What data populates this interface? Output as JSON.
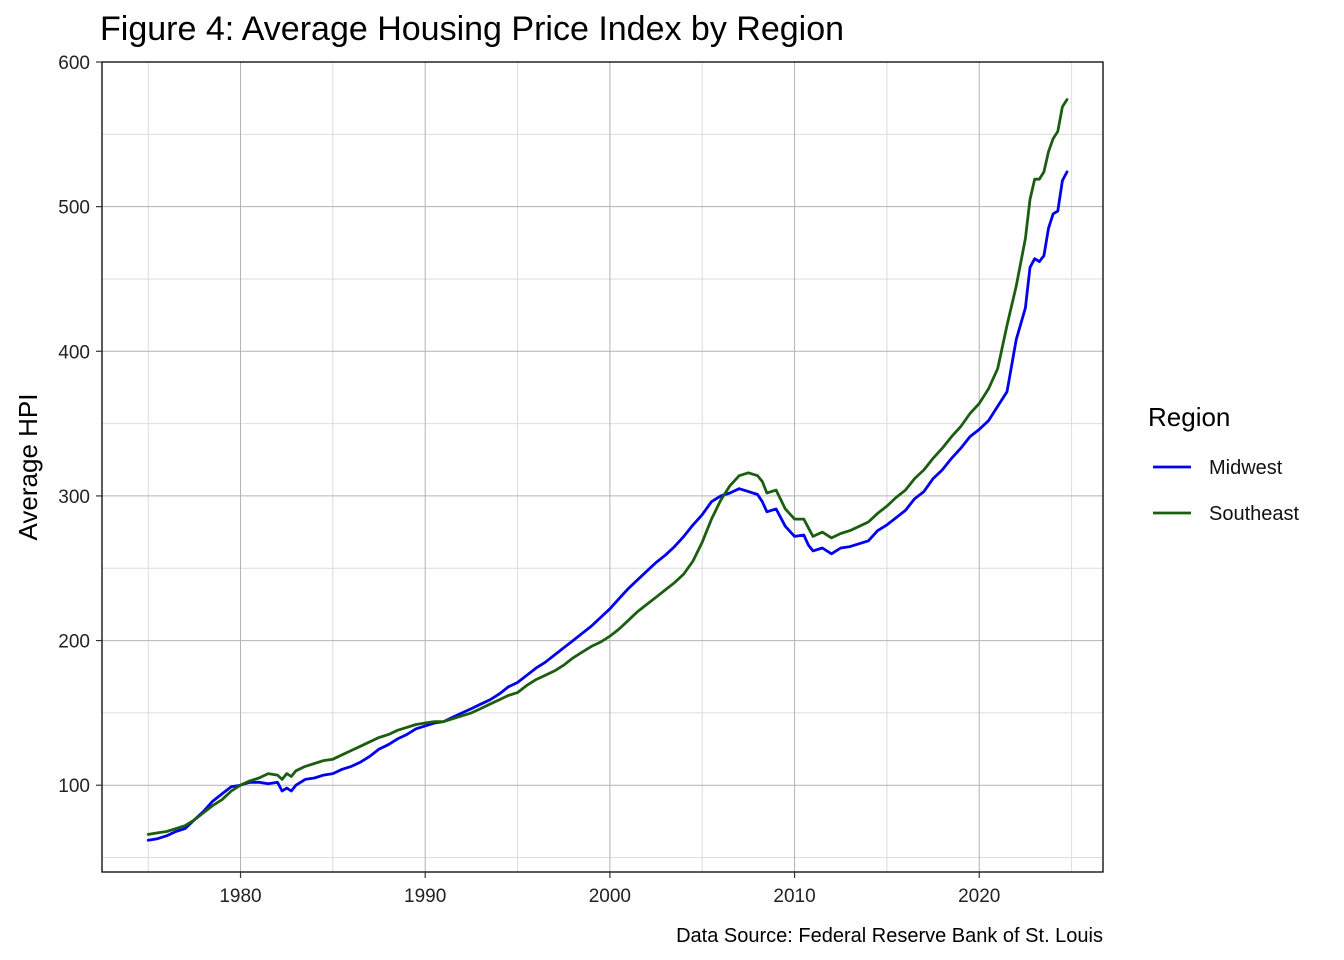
{
  "chart_data": {
    "type": "line",
    "title": "Figure 4: Average Housing Price Index by Region",
    "xlabel": "",
    "ylabel": "Average HPI",
    "caption": "Data Source: Federal Reserve Bank of St. Louis",
    "xlim": [
      1972.5,
      2026.7
    ],
    "ylim": [
      40,
      600
    ],
    "x_ticks": [
      1980,
      1990,
      2000,
      2010,
      2020
    ],
    "y_ticks": [
      100,
      200,
      300,
      400,
      500,
      600
    ],
    "grid": true,
    "legend": {
      "title": "Region",
      "position": "right"
    },
    "series": [
      {
        "name": "Midwest",
        "color": "#0000ee",
        "points": [
          [
            1975.0,
            62
          ],
          [
            1975.5,
            63
          ],
          [
            1976.0,
            65
          ],
          [
            1976.5,
            68
          ],
          [
            1977.0,
            70
          ],
          [
            1977.5,
            76
          ],
          [
            1978.0,
            82
          ],
          [
            1978.5,
            89
          ],
          [
            1979.0,
            94
          ],
          [
            1979.5,
            99
          ],
          [
            1980.0,
            100
          ],
          [
            1980.5,
            102
          ],
          [
            1981.0,
            102
          ],
          [
            1981.5,
            101
          ],
          [
            1982.0,
            102
          ],
          [
            1982.25,
            96
          ],
          [
            1982.5,
            98
          ],
          [
            1982.75,
            96
          ],
          [
            1983.0,
            100
          ],
          [
            1983.5,
            104
          ],
          [
            1984.0,
            105
          ],
          [
            1984.5,
            107
          ],
          [
            1985.0,
            108
          ],
          [
            1985.5,
            111
          ],
          [
            1986.0,
            113
          ],
          [
            1986.5,
            116
          ],
          [
            1987.0,
            120
          ],
          [
            1987.5,
            125
          ],
          [
            1988.0,
            128
          ],
          [
            1988.5,
            132
          ],
          [
            1989.0,
            135
          ],
          [
            1989.5,
            139
          ],
          [
            1990.0,
            141
          ],
          [
            1990.5,
            143
          ],
          [
            1991.0,
            144
          ],
          [
            1991.5,
            147
          ],
          [
            1992.0,
            150
          ],
          [
            1992.5,
            153
          ],
          [
            1993.0,
            156
          ],
          [
            1993.5,
            159
          ],
          [
            1994.0,
            163
          ],
          [
            1994.5,
            168
          ],
          [
            1995.0,
            171
          ],
          [
            1995.5,
            176
          ],
          [
            1996.0,
            181
          ],
          [
            1996.5,
            185
          ],
          [
            1997.0,
            190
          ],
          [
            1997.5,
            195
          ],
          [
            1998.0,
            200
          ],
          [
            1998.5,
            205
          ],
          [
            1999.0,
            210
          ],
          [
            1999.5,
            216
          ],
          [
            2000.0,
            222
          ],
          [
            2000.5,
            229
          ],
          [
            2001.0,
            236
          ],
          [
            2001.5,
            242
          ],
          [
            2002.0,
            248
          ],
          [
            2002.5,
            254
          ],
          [
            2003.0,
            259
          ],
          [
            2003.5,
            265
          ],
          [
            2004.0,
            272
          ],
          [
            2004.5,
            280
          ],
          [
            2005.0,
            287
          ],
          [
            2005.5,
            296
          ],
          [
            2006.0,
            300
          ],
          [
            2006.5,
            302
          ],
          [
            2007.0,
            305
          ],
          [
            2007.5,
            303
          ],
          [
            2008.0,
            301
          ],
          [
            2008.25,
            296
          ],
          [
            2008.5,
            289
          ],
          [
            2009.0,
            291
          ],
          [
            2009.5,
            279
          ],
          [
            2010.0,
            272
          ],
          [
            2010.5,
            273
          ],
          [
            2010.75,
            266
          ],
          [
            2011.0,
            262
          ],
          [
            2011.5,
            264
          ],
          [
            2012.0,
            260
          ],
          [
            2012.5,
            264
          ],
          [
            2013.0,
            265
          ],
          [
            2013.5,
            267
          ],
          [
            2014.0,
            269
          ],
          [
            2014.5,
            276
          ],
          [
            2015.0,
            280
          ],
          [
            2015.5,
            285
          ],
          [
            2016.0,
            290
          ],
          [
            2016.5,
            298
          ],
          [
            2017.0,
            303
          ],
          [
            2017.5,
            312
          ],
          [
            2018.0,
            318
          ],
          [
            2018.5,
            326
          ],
          [
            2019.0,
            333
          ],
          [
            2019.5,
            341
          ],
          [
            2020.0,
            346
          ],
          [
            2020.5,
            352
          ],
          [
            2021.0,
            362
          ],
          [
            2021.5,
            372
          ],
          [
            2022.0,
            408
          ],
          [
            2022.5,
            430
          ],
          [
            2022.75,
            458
          ],
          [
            2023.0,
            464
          ],
          [
            2023.25,
            462
          ],
          [
            2023.5,
            466
          ],
          [
            2023.75,
            485
          ],
          [
            2024.0,
            495
          ],
          [
            2024.25,
            497
          ],
          [
            2024.5,
            518
          ],
          [
            2024.75,
            524
          ]
        ]
      },
      {
        "name": "Southeast",
        "color": "#1b5e10",
        "points": [
          [
            1975.0,
            66
          ],
          [
            1975.5,
            67
          ],
          [
            1976.0,
            68
          ],
          [
            1976.5,
            70
          ],
          [
            1977.0,
            72
          ],
          [
            1977.5,
            76
          ],
          [
            1978.0,
            81
          ],
          [
            1978.5,
            86
          ],
          [
            1979.0,
            90
          ],
          [
            1979.5,
            96
          ],
          [
            1980.0,
            100
          ],
          [
            1980.5,
            103
          ],
          [
            1981.0,
            105
          ],
          [
            1981.5,
            108
          ],
          [
            1982.0,
            107
          ],
          [
            1982.25,
            104
          ],
          [
            1982.5,
            108
          ],
          [
            1982.75,
            106
          ],
          [
            1983.0,
            110
          ],
          [
            1983.5,
            113
          ],
          [
            1984.0,
            115
          ],
          [
            1984.5,
            117
          ],
          [
            1985.0,
            118
          ],
          [
            1985.5,
            121
          ],
          [
            1986.0,
            124
          ],
          [
            1986.5,
            127
          ],
          [
            1987.0,
            130
          ],
          [
            1987.5,
            133
          ],
          [
            1988.0,
            135
          ],
          [
            1988.5,
            138
          ],
          [
            1989.0,
            140
          ],
          [
            1989.5,
            142
          ],
          [
            1990.0,
            143
          ],
          [
            1990.5,
            144
          ],
          [
            1991.0,
            144
          ],
          [
            1991.5,
            146
          ],
          [
            1992.0,
            148
          ],
          [
            1992.5,
            150
          ],
          [
            1993.0,
            153
          ],
          [
            1993.5,
            156
          ],
          [
            1994.0,
            159
          ],
          [
            1994.5,
            162
          ],
          [
            1995.0,
            164
          ],
          [
            1995.5,
            169
          ],
          [
            1996.0,
            173
          ],
          [
            1996.5,
            176
          ],
          [
            1997.0,
            179
          ],
          [
            1997.5,
            183
          ],
          [
            1998.0,
            188
          ],
          [
            1998.5,
            192
          ],
          [
            1999.0,
            196
          ],
          [
            1999.5,
            199
          ],
          [
            2000.0,
            203
          ],
          [
            2000.5,
            208
          ],
          [
            2001.0,
            214
          ],
          [
            2001.5,
            220
          ],
          [
            2002.0,
            225
          ],
          [
            2002.5,
            230
          ],
          [
            2003.0,
            235
          ],
          [
            2003.5,
            240
          ],
          [
            2004.0,
            246
          ],
          [
            2004.5,
            255
          ],
          [
            2005.0,
            268
          ],
          [
            2005.5,
            284
          ],
          [
            2006.0,
            297
          ],
          [
            2006.5,
            307
          ],
          [
            2007.0,
            314
          ],
          [
            2007.5,
            316
          ],
          [
            2008.0,
            314
          ],
          [
            2008.25,
            310
          ],
          [
            2008.5,
            302
          ],
          [
            2009.0,
            304
          ],
          [
            2009.5,
            291
          ],
          [
            2010.0,
            284
          ],
          [
            2010.5,
            284
          ],
          [
            2010.75,
            278
          ],
          [
            2011.0,
            272
          ],
          [
            2011.5,
            275
          ],
          [
            2012.0,
            271
          ],
          [
            2012.5,
            274
          ],
          [
            2013.0,
            276
          ],
          [
            2013.5,
            279
          ],
          [
            2014.0,
            282
          ],
          [
            2014.5,
            288
          ],
          [
            2015.0,
            293
          ],
          [
            2015.5,
            299
          ],
          [
            2016.0,
            304
          ],
          [
            2016.5,
            312
          ],
          [
            2017.0,
            318
          ],
          [
            2017.5,
            326
          ],
          [
            2018.0,
            333
          ],
          [
            2018.5,
            341
          ],
          [
            2019.0,
            348
          ],
          [
            2019.5,
            357
          ],
          [
            2020.0,
            364
          ],
          [
            2020.5,
            374
          ],
          [
            2021.0,
            388
          ],
          [
            2021.5,
            418
          ],
          [
            2022.0,
            445
          ],
          [
            2022.5,
            478
          ],
          [
            2022.75,
            505
          ],
          [
            2023.0,
            519
          ],
          [
            2023.25,
            519
          ],
          [
            2023.5,
            524
          ],
          [
            2023.75,
            538
          ],
          [
            2024.0,
            547
          ],
          [
            2024.25,
            552
          ],
          [
            2024.5,
            569
          ],
          [
            2024.75,
            574
          ]
        ]
      }
    ]
  }
}
